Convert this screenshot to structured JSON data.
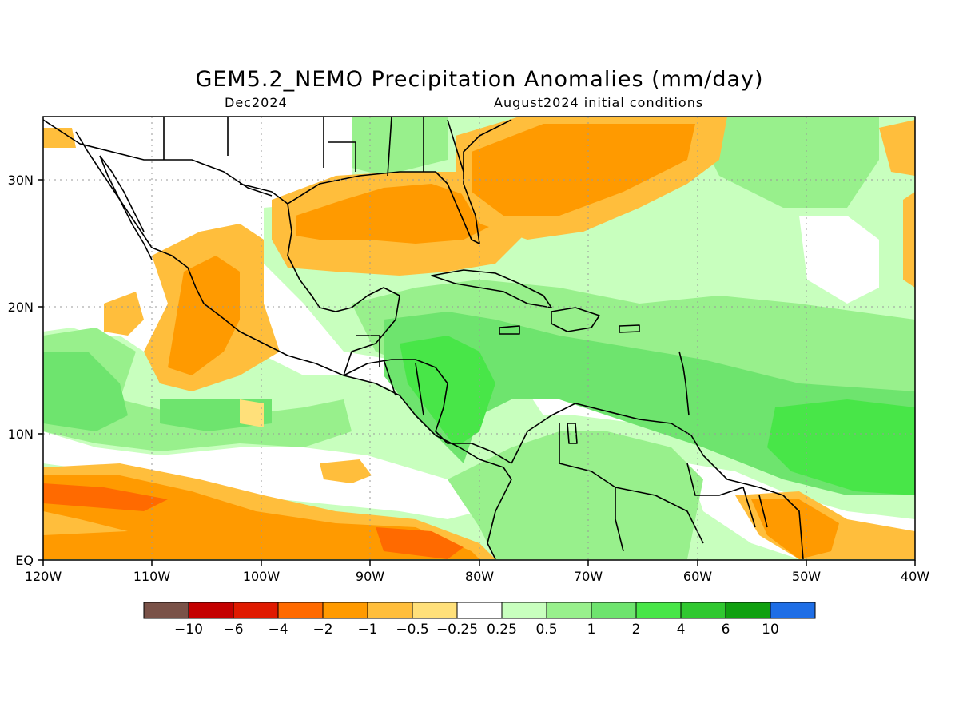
{
  "title": "GEM5.2_NEMO Precipitation Anomalies (mm/day)",
  "subtitle_left": "Dec2024",
  "subtitle_right": "August2024 initial conditions",
  "lon_labels": [
    "120W",
    "110W",
    "100W",
    "90W",
    "80W",
    "70W",
    "60W",
    "50W",
    "40W"
  ],
  "lat_labels": [
    "30N",
    "20N",
    "10N",
    "EQ"
  ],
  "colorbar": {
    "colors": [
      "#7a5248",
      "#c40000",
      "#e01a00",
      "#ff6a00",
      "#ff9a00",
      "#ffbe3c",
      "#ffe07a",
      "#ffffff",
      "#c8ffbe",
      "#98f08c",
      "#6ee46e",
      "#48e648",
      "#30c830",
      "#10a010",
      "#1e6ee6"
    ],
    "labels": [
      "−10",
      "−6",
      "−4",
      "−2",
      "−1",
      "−0.5",
      "−0.25",
      "0.25",
      "0.5",
      "1",
      "2",
      "4",
      "6",
      "10"
    ]
  }
}
